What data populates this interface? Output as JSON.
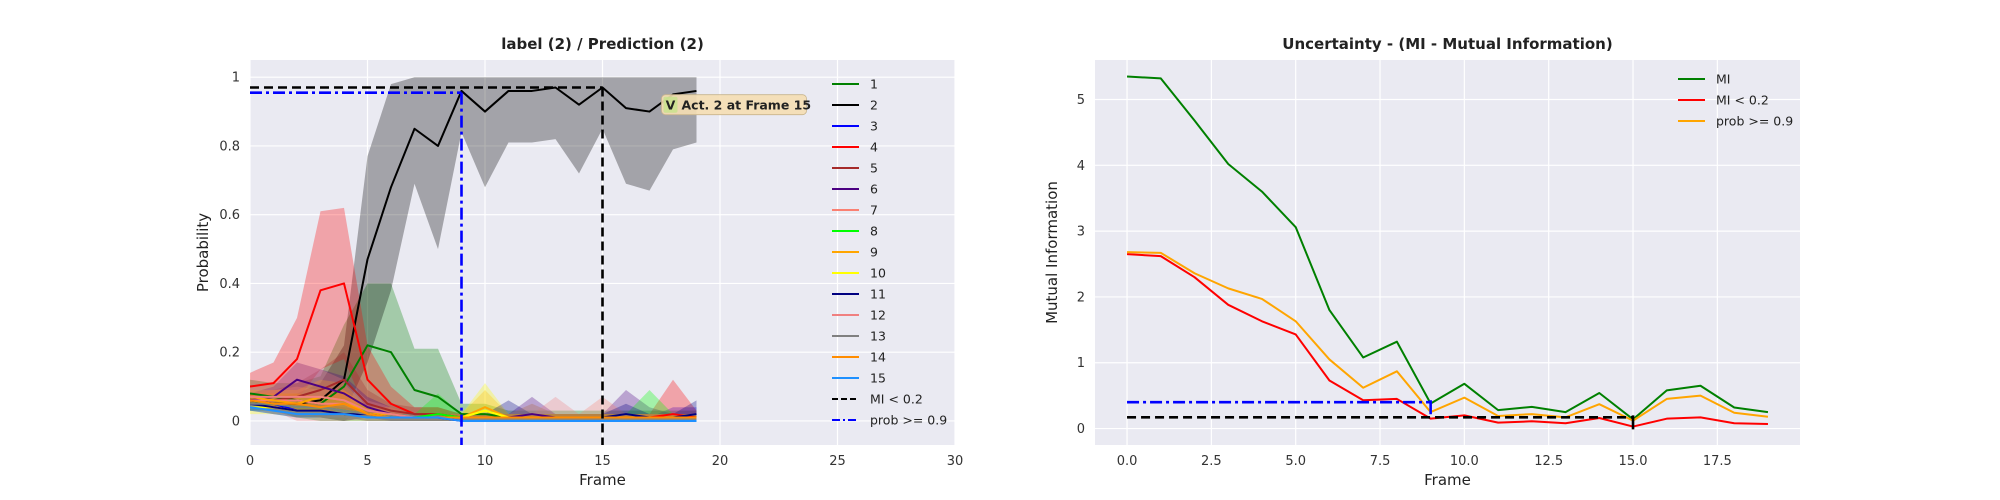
{
  "chart_data": [
    {
      "type": "line",
      "title": "label (2) / Prediction (2)",
      "xlabel": "Frame",
      "ylabel": "Probability",
      "xlim": [
        0,
        30
      ],
      "ylim": [
        -0.07,
        1.05
      ],
      "xticks": [
        0,
        5,
        10,
        15,
        20,
        25,
        30
      ],
      "yticks": [
        0.0,
        0.2,
        0.4,
        0.6,
        0.8,
        1.0
      ],
      "grid": true,
      "legend": "right",
      "x": [
        0,
        1,
        2,
        3,
        4,
        5,
        6,
        7,
        8,
        9,
        10,
        11,
        12,
        13,
        14,
        15,
        16,
        17,
        18,
        19
      ],
      "series": [
        {
          "name": "1",
          "color": "#008000",
          "values": [
            0.08,
            0.07,
            0.06,
            0.05,
            0.1,
            0.22,
            0.2,
            0.09,
            0.07,
            0.02,
            0.02,
            0.01,
            0.01,
            0.01,
            0.01,
            0.01,
            0.01,
            0.01,
            0.01,
            0.01
          ],
          "band": [
            0.04,
            0.04,
            0.05,
            0.08,
            0.18,
            0.18,
            0.2,
            0.12,
            0.14,
            0.03,
            0.03,
            0.02,
            0.02,
            0.02,
            0.02,
            0.02,
            0.02,
            0.02,
            0.02,
            0.02
          ]
        },
        {
          "name": "2",
          "color": "#000000",
          "values": [
            0.06,
            0.05,
            0.05,
            0.06,
            0.12,
            0.47,
            0.68,
            0.85,
            0.8,
            0.96,
            0.9,
            0.96,
            0.96,
            0.97,
            0.92,
            0.97,
            0.91,
            0.9,
            0.95,
            0.96
          ],
          "band": [
            0.02,
            0.02,
            0.03,
            0.05,
            0.1,
            0.3,
            0.3,
            0.16,
            0.3,
            0.12,
            0.22,
            0.15,
            0.15,
            0.15,
            0.2,
            0.12,
            0.22,
            0.23,
            0.16,
            0.15
          ]
        },
        {
          "name": "3",
          "color": "#0000ff",
          "values": [
            0.05,
            0.05,
            0.03,
            0.03,
            0.02,
            0.02,
            0.01,
            0.01,
            0.01,
            0.0,
            0.0,
            0.0,
            0.0,
            0.0,
            0.0,
            0.0,
            0.0,
            0.0,
            0.0,
            0.0
          ],
          "band": [
            0.02,
            0.02,
            0.02,
            0.02,
            0.02,
            0.01,
            0.01,
            0.01,
            0.01,
            0.01,
            0.01,
            0.01,
            0.01,
            0.01,
            0.01,
            0.01,
            0.01,
            0.01,
            0.04,
            0.04
          ]
        },
        {
          "name": "4",
          "color": "#ff0000",
          "values": [
            0.1,
            0.11,
            0.18,
            0.38,
            0.4,
            0.12,
            0.05,
            0.02,
            0.02,
            0.01,
            0.01,
            0.01,
            0.01,
            0.01,
            0.01,
            0.01,
            0.01,
            0.01,
            0.02,
            0.01
          ],
          "band": [
            0.04,
            0.06,
            0.12,
            0.23,
            0.22,
            0.1,
            0.05,
            0.02,
            0.02,
            0.01,
            0.01,
            0.01,
            0.01,
            0.01,
            0.01,
            0.01,
            0.01,
            0.01,
            0.1,
            0.02
          ]
        },
        {
          "name": "5",
          "color": "#a52a2a",
          "values": [
            0.06,
            0.06,
            0.07,
            0.09,
            0.12,
            0.05,
            0.03,
            0.02,
            0.02,
            0.01,
            0.01,
            0.01,
            0.01,
            0.01,
            0.01,
            0.01,
            0.01,
            0.01,
            0.01,
            0.01
          ],
          "band": [
            0.02,
            0.03,
            0.04,
            0.06,
            0.08,
            0.04,
            0.02,
            0.02,
            0.02,
            0.01,
            0.01,
            0.01,
            0.01,
            0.01,
            0.01,
            0.01,
            0.01,
            0.01,
            0.01,
            0.01
          ]
        },
        {
          "name": "6",
          "color": "#4b0082",
          "values": [
            0.06,
            0.07,
            0.12,
            0.1,
            0.08,
            0.04,
            0.02,
            0.01,
            0.01,
            0.01,
            0.01,
            0.01,
            0.02,
            0.01,
            0.01,
            0.01,
            0.01,
            0.01,
            0.01,
            0.01
          ],
          "band": [
            0.02,
            0.03,
            0.05,
            0.05,
            0.05,
            0.03,
            0.02,
            0.01,
            0.01,
            0.01,
            0.01,
            0.01,
            0.05,
            0.01,
            0.01,
            0.01,
            0.08,
            0.03,
            0.01,
            0.01
          ]
        },
        {
          "name": "7",
          "color": "#fa8072",
          "values": [
            0.06,
            0.06,
            0.06,
            0.05,
            0.05,
            0.02,
            0.01,
            0.01,
            0.01,
            0.01,
            0.01,
            0.01,
            0.01,
            0.01,
            0.01,
            0.01,
            0.01,
            0.01,
            0.01,
            0.01
          ],
          "band": [
            0.02,
            0.03,
            0.04,
            0.04,
            0.04,
            0.02,
            0.01,
            0.01,
            0.01,
            0.01,
            0.01,
            0.01,
            0.04,
            0.01,
            0.01,
            0.06,
            0.01,
            0.01,
            0.01,
            0.01
          ]
        },
        {
          "name": "8",
          "color": "#00ff00",
          "values": [
            0.05,
            0.05,
            0.04,
            0.04,
            0.03,
            0.02,
            0.01,
            0.01,
            0.02,
            0.01,
            0.01,
            0.01,
            0.01,
            0.01,
            0.01,
            0.01,
            0.01,
            0.01,
            0.01,
            0.01
          ],
          "band": [
            0.02,
            0.02,
            0.03,
            0.03,
            0.03,
            0.02,
            0.01,
            0.01,
            0.06,
            0.01,
            0.01,
            0.01,
            0.01,
            0.01,
            0.01,
            0.01,
            0.01,
            0.08,
            0.01,
            0.01
          ]
        },
        {
          "name": "9",
          "color": "#ffa500",
          "values": [
            0.07,
            0.06,
            0.05,
            0.07,
            0.06,
            0.02,
            0.02,
            0.01,
            0.01,
            0.01,
            0.04,
            0.01,
            0.01,
            0.01,
            0.01,
            0.01,
            0.01,
            0.01,
            0.01,
            0.01
          ],
          "band": [
            0.02,
            0.03,
            0.04,
            0.05,
            0.05,
            0.02,
            0.02,
            0.01,
            0.01,
            0.01,
            0.05,
            0.01,
            0.01,
            0.01,
            0.01,
            0.01,
            0.01,
            0.01,
            0.01,
            0.01
          ]
        },
        {
          "name": "10",
          "color": "#ffff00",
          "values": [
            0.04,
            0.04,
            0.03,
            0.03,
            0.02,
            0.02,
            0.01,
            0.01,
            0.01,
            0.01,
            0.03,
            0.01,
            0.01,
            0.01,
            0.01,
            0.01,
            0.01,
            0.01,
            0.01,
            0.01
          ],
          "band": [
            0.02,
            0.02,
            0.02,
            0.02,
            0.02,
            0.01,
            0.01,
            0.01,
            0.01,
            0.01,
            0.08,
            0.01,
            0.01,
            0.01,
            0.01,
            0.01,
            0.01,
            0.01,
            0.01,
            0.01
          ]
        },
        {
          "name": "11",
          "color": "#000080",
          "values": [
            0.05,
            0.04,
            0.03,
            0.03,
            0.02,
            0.02,
            0.01,
            0.01,
            0.01,
            0.01,
            0.01,
            0.01,
            0.01,
            0.01,
            0.01,
            0.01,
            0.02,
            0.01,
            0.01,
            0.02
          ],
          "band": [
            0.02,
            0.02,
            0.02,
            0.02,
            0.02,
            0.01,
            0.01,
            0.01,
            0.01,
            0.01,
            0.01,
            0.05,
            0.01,
            0.01,
            0.01,
            0.01,
            0.03,
            0.01,
            0.01,
            0.04
          ]
        },
        {
          "name": "12",
          "color": "#f08080",
          "values": [
            0.07,
            0.07,
            0.07,
            0.07,
            0.06,
            0.03,
            0.02,
            0.01,
            0.01,
            0.01,
            0.01,
            0.01,
            0.01,
            0.01,
            0.01,
            0.01,
            0.01,
            0.01,
            0.01,
            0.01
          ],
          "band": [
            0.03,
            0.04,
            0.1,
            0.08,
            0.06,
            0.03,
            0.02,
            0.01,
            0.01,
            0.01,
            0.01,
            0.01,
            0.01,
            0.06,
            0.01,
            0.01,
            0.01,
            0.01,
            0.01,
            0.01
          ]
        },
        {
          "name": "13",
          "color": "#808080",
          "values": [
            0.05,
            0.05,
            0.04,
            0.04,
            0.03,
            0.02,
            0.01,
            0.01,
            0.01,
            0.01,
            0.01,
            0.01,
            0.01,
            0.01,
            0.01,
            0.01,
            0.01,
            0.01,
            0.01,
            0.01
          ],
          "band": [
            0.02,
            0.02,
            0.02,
            0.02,
            0.02,
            0.01,
            0.01,
            0.01,
            0.01,
            0.01,
            0.01,
            0.01,
            0.04,
            0.01,
            0.01,
            0.01,
            0.01,
            0.01,
            0.01,
            0.01
          ]
        },
        {
          "name": "14",
          "color": "#ff8c00",
          "values": [
            0.06,
            0.05,
            0.05,
            0.04,
            0.05,
            0.02,
            0.01,
            0.01,
            0.01,
            0.01,
            0.01,
            0.01,
            0.01,
            0.01,
            0.01,
            0.01,
            0.01,
            0.01,
            0.01,
            0.01
          ],
          "band": [
            0.02,
            0.03,
            0.03,
            0.03,
            0.04,
            0.02,
            0.01,
            0.01,
            0.01,
            0.01,
            0.01,
            0.01,
            0.01,
            0.01,
            0.01,
            0.01,
            0.01,
            0.01,
            0.01,
            0.01
          ]
        },
        {
          "name": "15",
          "color": "#1e90ff",
          "values": [
            0.04,
            0.03,
            0.02,
            0.02,
            0.02,
            0.01,
            0.01,
            0.01,
            0.01,
            0.0,
            0.0,
            0.0,
            0.0,
            0.0,
            0.0,
            0.0,
            0.0,
            0.0,
            0.0,
            0.0
          ],
          "band": [
            0.01,
            0.01,
            0.01,
            0.01,
            0.01,
            0.01,
            0.01,
            0.01,
            0.01,
            0.01,
            0.01,
            0.01,
            0.01,
            0.01,
            0.01,
            0.01,
            0.01,
            0.01,
            0.01,
            0.01
          ]
        }
      ],
      "reference_lines": [
        {
          "name": "MI < 0.2",
          "color": "#000000",
          "style": "dashed",
          "y": 0.97,
          "x_start": 0,
          "x_end": 15,
          "x_marker": 15
        },
        {
          "name": "prob >= 0.9",
          "color": "#0000ff",
          "style": "dashdot",
          "y": 0.955,
          "x_start": 0,
          "x_end": 9,
          "x_marker": 9
        }
      ],
      "annotation": {
        "text": "Act. 2 at Frame 15",
        "badge": "V",
        "x": 15,
        "y": 0.92
      }
    },
    {
      "type": "line",
      "title": "Uncertainty - (MI - Mutual Information)",
      "xlabel": "Frame",
      "ylabel": "Mutual Information",
      "xlim": [
        -0.95,
        19.95
      ],
      "ylim": [
        -0.25,
        5.6
      ],
      "xticks": [
        0.0,
        2.5,
        5.0,
        7.5,
        10.0,
        12.5,
        15.0,
        17.5
      ],
      "xtick_labels": [
        "0.0",
        "2.5",
        "5.0",
        "7.5",
        "10.0",
        "12.5",
        "15.0",
        "17.5"
      ],
      "yticks": [
        0,
        1,
        2,
        3,
        4,
        5
      ],
      "grid": true,
      "legend": "top-right",
      "x": [
        0,
        1,
        2,
        3,
        4,
        5,
        6,
        7,
        8,
        9,
        10,
        11,
        12,
        13,
        14,
        15,
        16,
        17,
        18,
        19
      ],
      "series": [
        {
          "name": "MI",
          "color": "#008000",
          "values": [
            5.35,
            5.32,
            4.68,
            4.02,
            3.6,
            3.06,
            1.8,
            1.08,
            1.32,
            0.38,
            0.68,
            0.28,
            0.33,
            0.25,
            0.54,
            0.14,
            0.58,
            0.65,
            0.32,
            0.25
          ]
        },
        {
          "name": "MI < 0.2",
          "color": "#ff0000",
          "values": [
            2.65,
            2.62,
            2.3,
            1.88,
            1.63,
            1.43,
            0.73,
            0.43,
            0.45,
            0.15,
            0.2,
            0.09,
            0.11,
            0.08,
            0.16,
            0.03,
            0.15,
            0.17,
            0.08,
            0.07
          ]
        },
        {
          "name": "prob >= 0.9",
          "color": "#ffa500",
          "values": [
            2.68,
            2.67,
            2.36,
            2.13,
            1.97,
            1.63,
            1.05,
            0.62,
            0.87,
            0.25,
            0.47,
            0.19,
            0.22,
            0.17,
            0.37,
            0.12,
            0.45,
            0.5,
            0.24,
            0.18
          ]
        }
      ],
      "reference_lines": [
        {
          "name": "MI < 0.2",
          "color": "#000000",
          "style": "dashed",
          "y": 0.17,
          "x_start": 0,
          "x_end": 15,
          "x_marker": 15
        },
        {
          "name": "prob >= 0.9",
          "color": "#0000ff",
          "style": "dashdot",
          "y": 0.4,
          "x_start": 0,
          "x_end": 9,
          "x_marker": 9
        }
      ]
    }
  ]
}
